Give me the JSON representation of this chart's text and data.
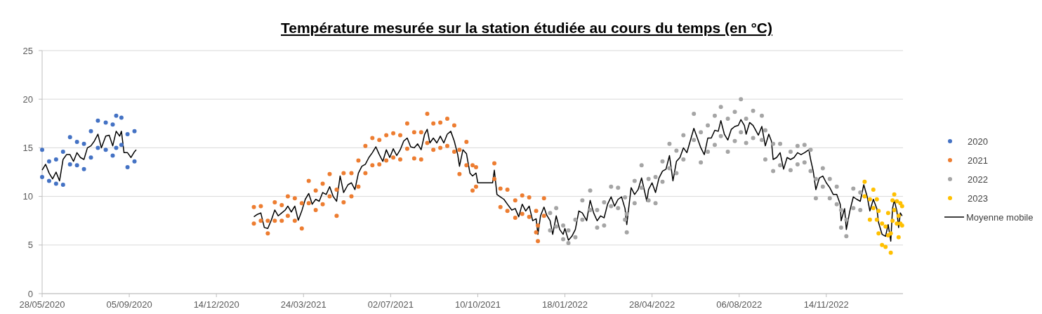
{
  "chart_data": {
    "type": "scatter",
    "title": "Température mesurée sur la station étudiée au cours du temps (en °C)",
    "xlim": [
      "2020-05-28",
      "2023-02-10"
    ],
    "ylim": [
      0,
      25
    ],
    "yticks": [
      0,
      5,
      10,
      15,
      20,
      25
    ],
    "xticks": [
      {
        "value": "2020-05-28",
        "label": "28/05/2020"
      },
      {
        "value": "2020-09-05",
        "label": "05/09/2020"
      },
      {
        "value": "2020-12-14",
        "label": "14/12/2020"
      },
      {
        "value": "2021-03-24",
        "label": "24/03/2021"
      },
      {
        "value": "2021-07-02",
        "label": "02/07/2021"
      },
      {
        "value": "2021-10-10",
        "label": "10/10/2021"
      },
      {
        "value": "2022-01-18",
        "label": "18/01/2022"
      },
      {
        "value": "2022-04-28",
        "label": "28/04/2022"
      },
      {
        "value": "2022-08-06",
        "label": "06/08/2022"
      },
      {
        "value": "2022-11-14",
        "label": "14/11/2022"
      }
    ],
    "grid": "y",
    "legend": "right",
    "marker": "circle",
    "series": [
      {
        "name": "2020",
        "color": "#4472c4",
        "x": [
          "2020-05-28",
          "2020-05-28",
          "2020-06-05",
          "2020-06-05",
          "2020-06-13",
          "2020-06-13",
          "2020-06-21",
          "2020-06-21",
          "2020-06-29",
          "2020-06-29",
          "2020-07-07",
          "2020-07-07",
          "2020-07-15",
          "2020-07-15",
          "2020-07-23",
          "2020-07-23",
          "2020-07-31",
          "2020-07-31",
          "2020-08-09",
          "2020-08-09",
          "2020-08-17",
          "2020-08-17",
          "2020-08-21",
          "2020-08-21",
          "2020-08-27",
          "2020-08-27",
          "2020-09-03",
          "2020-09-03",
          "2020-09-11",
          "2020-09-11"
        ],
        "values": [
          14.8,
          12.0,
          13.6,
          11.6,
          13.8,
          11.3,
          14.6,
          11.2,
          16.1,
          13.3,
          15.6,
          13.2,
          15.4,
          12.8,
          16.7,
          14.0,
          17.8,
          15.0,
          17.6,
          14.8,
          17.4,
          14.2,
          18.3,
          15.0,
          18.1,
          15.3,
          16.4,
          13.0,
          16.7,
          13.6
        ]
      },
      {
        "name": "2021",
        "color": "#ed7d31",
        "x": [
          "2021-01-26",
          "2021-01-26",
          "2021-02-03",
          "2021-02-03",
          "2021-02-11",
          "2021-02-11",
          "2021-02-19",
          "2021-02-19",
          "2021-02-27",
          "2021-02-27",
          "2021-03-06",
          "2021-03-06",
          "2021-03-14",
          "2021-03-14",
          "2021-03-22",
          "2021-03-22",
          "2021-03-30",
          "2021-03-30",
          "2021-04-07",
          "2021-04-07",
          "2021-04-15",
          "2021-04-15",
          "2021-04-23",
          "2021-04-23",
          "2021-05-01",
          "2021-05-01",
          "2021-05-09",
          "2021-05-09",
          "2021-05-18",
          "2021-05-18",
          "2021-05-26",
          "2021-05-26",
          "2021-06-03",
          "2021-06-03",
          "2021-06-11",
          "2021-06-11",
          "2021-06-19",
          "2021-06-19",
          "2021-06-27",
          "2021-06-27",
          "2021-07-05",
          "2021-07-05",
          "2021-07-13",
          "2021-07-13",
          "2021-07-21",
          "2021-07-21",
          "2021-07-29",
          "2021-07-29",
          "2021-08-06",
          "2021-08-06",
          "2021-08-13",
          "2021-08-13",
          "2021-08-20",
          "2021-08-20",
          "2021-08-28",
          "2021-08-28",
          "2021-09-05",
          "2021-09-05",
          "2021-09-13",
          "2021-09-13",
          "2021-09-19",
          "2021-09-19",
          "2021-09-27",
          "2021-09-27",
          "2021-10-04",
          "2021-10-04",
          "2021-10-08",
          "2021-10-08",
          "2021-10-29",
          "2021-10-29",
          "2021-11-05",
          "2021-11-05",
          "2021-11-13",
          "2021-11-13",
          "2021-11-22",
          "2021-11-22",
          "2021-11-30",
          "2021-11-30",
          "2021-12-08",
          "2021-12-08",
          "2021-12-16",
          "2021-12-16",
          "2021-12-18",
          "2021-12-18",
          "2021-12-25",
          "2021-12-25"
        ],
        "values": [
          8.9,
          7.2,
          9.0,
          7.5,
          7.5,
          6.2,
          9.4,
          7.5,
          9.1,
          7.5,
          10.0,
          8.0,
          9.8,
          7.5,
          9.3,
          6.7,
          11.6,
          9.3,
          10.6,
          8.6,
          11.3,
          9.2,
          12.3,
          10.0,
          10.7,
          8.0,
          12.4,
          9.4,
          12.4,
          10.0,
          13.7,
          11.0,
          15.2,
          12.4,
          16.0,
          13.2,
          15.8,
          13.3,
          16.3,
          13.7,
          16.5,
          14.0,
          16.3,
          13.8,
          17.5,
          14.9,
          16.6,
          13.9,
          16.6,
          13.8,
          18.5,
          15.5,
          17.5,
          14.8,
          17.6,
          15.0,
          18.0,
          15.2,
          17.3,
          14.6,
          14.8,
          12.3,
          15.6,
          13.2,
          13.2,
          10.6,
          13.0,
          11.0,
          13.4,
          11.8,
          10.8,
          8.9,
          10.7,
          8.5,
          9.6,
          7.8,
          10.1,
          8.2,
          9.9,
          7.9,
          8.5,
          6.3,
          7.0,
          5.4,
          9.8,
          8.0
        ]
      },
      {
        "name": "2022",
        "color": "#a5a5a5",
        "x": [
          "2022-01-01",
          "2022-01-01",
          "2022-01-08",
          "2022-01-08",
          "2022-01-16",
          "2022-01-16",
          "2022-01-22",
          "2022-01-22",
          "2022-01-30",
          "2022-01-30",
          "2022-02-07",
          "2022-02-07",
          "2022-02-16",
          "2022-02-16",
          "2022-02-24",
          "2022-02-24",
          "2022-03-04",
          "2022-03-04",
          "2022-03-12",
          "2022-03-12",
          "2022-03-20",
          "2022-03-20",
          "2022-03-28",
          "2022-03-28",
          "2022-03-30",
          "2022-03-30",
          "2022-04-08",
          "2022-04-08",
          "2022-04-16",
          "2022-04-16",
          "2022-04-24",
          "2022-04-24",
          "2022-05-02",
          "2022-05-02",
          "2022-05-10",
          "2022-05-10",
          "2022-05-18",
          "2022-05-18",
          "2022-05-26",
          "2022-05-26",
          "2022-06-03",
          "2022-06-03",
          "2022-06-15",
          "2022-06-15",
          "2022-06-23",
          "2022-06-23",
          "2022-07-01",
          "2022-07-01",
          "2022-07-09",
          "2022-07-09",
          "2022-07-16",
          "2022-07-16",
          "2022-07-24",
          "2022-07-24",
          "2022-08-01",
          "2022-08-01",
          "2022-08-08",
          "2022-08-08",
          "2022-08-14",
          "2022-08-14",
          "2022-08-22",
          "2022-08-22",
          "2022-09-01",
          "2022-09-01",
          "2022-09-05",
          "2022-09-05",
          "2022-09-14",
          "2022-09-14",
          "2022-09-22",
          "2022-09-22",
          "2022-10-04",
          "2022-10-04",
          "2022-10-12",
          "2022-10-12",
          "2022-10-20",
          "2022-10-20",
          "2022-10-27",
          "2022-10-27",
          "2022-11-02",
          "2022-11-02",
          "2022-11-10",
          "2022-11-10",
          "2022-11-18",
          "2022-11-18",
          "2022-11-26",
          "2022-11-26",
          "2022-12-01",
          "2022-12-01",
          "2022-12-07",
          "2022-12-07",
          "2022-12-15",
          "2022-12-15",
          "2022-12-23",
          "2022-12-23"
        ],
        "values": [
          8.3,
          6.5,
          8.8,
          6.9,
          7.0,
          5.6,
          6.5,
          5.2,
          7.6,
          5.8,
          9.6,
          7.6,
          10.6,
          8.6,
          8.6,
          6.8,
          9.4,
          7.0,
          11.0,
          9.0,
          10.9,
          8.8,
          9.9,
          7.6,
          8.2,
          6.3,
          11.6,
          9.3,
          13.2,
          10.9,
          11.8,
          9.6,
          12.0,
          9.3,
          13.6,
          11.5,
          15.4,
          12.9,
          14.7,
          12.4,
          16.3,
          13.8,
          18.5,
          15.8,
          16.6,
          13.5,
          17.3,
          14.6,
          18.3,
          15.3,
          19.2,
          16.2,
          18.0,
          14.6,
          18.7,
          15.7,
          20.0,
          16.6,
          18.0,
          15.5,
          18.8,
          16.0,
          18.3,
          15.8,
          16.8,
          13.8,
          15.4,
          12.6,
          15.4,
          13.2,
          14.6,
          12.7,
          15.2,
          13.3,
          15.3,
          13.5,
          14.8,
          12.6,
          11.8,
          9.8,
          12.9,
          11.0,
          11.8,
          9.8,
          11.0,
          9.2,
          8.6,
          6.8,
          7.6,
          5.9,
          10.8,
          8.8,
          10.4,
          8.6
        ]
      },
      {
        "name": "2023",
        "color": "#ffc000",
        "x": [
          "2022-12-28",
          "2022-12-28",
          "2023-01-03",
          "2023-01-03",
          "2023-01-07",
          "2023-01-07",
          "2023-01-11",
          "2023-01-11",
          "2023-01-13",
          "2023-01-13",
          "2023-01-17",
          "2023-01-17",
          "2023-01-21",
          "2023-01-21",
          "2023-01-24",
          "2023-01-24",
          "2023-01-27",
          "2023-01-27",
          "2023-01-29",
          "2023-01-29",
          "2023-01-31",
          "2023-01-31",
          "2023-02-03",
          "2023-02-03",
          "2023-02-05",
          "2023-02-05",
          "2023-02-07",
          "2023-02-07",
          "2023-02-09",
          "2023-02-09"
        ],
        "values": [
          11.5,
          10.0,
          9.7,
          7.6,
          10.7,
          8.8,
          9.7,
          7.6,
          8.5,
          6.2,
          7.2,
          5.0,
          6.9,
          4.8,
          8.3,
          6.0,
          6.2,
          4.2,
          9.6,
          7.5,
          10.2,
          8.6,
          9.5,
          7.2,
          8.0,
          5.8,
          9.3,
          7.2,
          9.0,
          7.0
        ]
      },
      {
        "name": "Moyenne mobile",
        "color": "#000000",
        "type": "line",
        "marker": "none",
        "x": [
          "2020-05-28",
          "2020-06-01",
          "2020-06-05",
          "2020-06-09",
          "2020-06-13",
          "2020-06-17",
          "2020-06-21",
          "2020-06-25",
          "2020-06-29",
          "2020-07-03",
          "2020-07-07",
          "2020-07-11",
          "2020-07-15",
          "2020-07-19",
          "2020-07-23",
          "2020-07-27",
          "2020-07-31",
          "2020-08-04",
          "2020-08-09",
          "2020-08-13",
          "2020-08-17",
          "2020-08-21",
          "2020-08-25",
          "2020-08-27",
          "2020-08-30",
          "2020-09-03",
          "2020-09-07",
          "2020-09-11",
          "2020-09-13",
          "2020-11-01",
          "2021-01-26",
          "2021-01-30",
          "2021-02-03",
          "2021-02-07",
          "2021-02-11",
          "2021-02-15",
          "2021-02-19",
          "2021-02-23",
          "2021-02-27",
          "2021-03-03",
          "2021-03-06",
          "2021-03-10",
          "2021-03-14",
          "2021-03-18",
          "2021-03-22",
          "2021-03-26",
          "2021-03-30",
          "2021-04-03",
          "2021-04-07",
          "2021-04-11",
          "2021-04-15",
          "2021-04-19",
          "2021-04-23",
          "2021-04-27",
          "2021-05-01",
          "2021-05-05",
          "2021-05-09",
          "2021-05-14",
          "2021-05-18",
          "2021-05-22",
          "2021-05-26",
          "2021-05-30",
          "2021-06-03",
          "2021-06-07",
          "2021-06-11",
          "2021-06-15",
          "2021-06-19",
          "2021-06-23",
          "2021-06-27",
          "2021-07-01",
          "2021-07-05",
          "2021-07-09",
          "2021-07-13",
          "2021-07-17",
          "2021-07-21",
          "2021-07-25",
          "2021-07-29",
          "2021-08-02",
          "2021-08-06",
          "2021-08-10",
          "2021-08-13",
          "2021-08-16",
          "2021-08-20",
          "2021-08-24",
          "2021-08-28",
          "2021-09-01",
          "2021-09-05",
          "2021-09-09",
          "2021-09-13",
          "2021-09-17",
          "2021-09-19",
          "2021-09-23",
          "2021-09-27",
          "2021-10-01",
          "2021-10-04",
          "2021-10-08",
          "2021-10-10",
          "2021-10-27",
          "2021-10-29",
          "2021-11-01",
          "2021-11-05",
          "2021-11-09",
          "2021-11-13",
          "2021-11-18",
          "2021-11-22",
          "2021-11-26",
          "2021-11-30",
          "2021-12-04",
          "2021-12-08",
          "2021-12-12",
          "2021-12-16",
          "2021-12-18",
          "2021-12-21",
          "2021-12-25",
          "2021-12-28",
          "2022-01-01",
          "2022-01-04",
          "2022-01-08",
          "2022-01-12",
          "2022-01-16",
          "2022-01-18",
          "2022-01-22",
          "2022-01-26",
          "2022-01-30",
          "2022-02-03",
          "2022-02-07",
          "2022-02-12",
          "2022-02-16",
          "2022-02-20",
          "2022-02-24",
          "2022-02-28",
          "2022-03-04",
          "2022-03-08",
          "2022-03-12",
          "2022-03-16",
          "2022-03-20",
          "2022-03-24",
          "2022-03-28",
          "2022-03-30",
          "2022-04-04",
          "2022-04-08",
          "2022-04-12",
          "2022-04-16",
          "2022-04-22",
          "2022-04-24",
          "2022-04-28",
          "2022-05-02",
          "2022-05-06",
          "2022-05-10",
          "2022-05-14",
          "2022-05-18",
          "2022-05-22",
          "2022-05-26",
          "2022-05-30",
          "2022-06-03",
          "2022-06-07",
          "2022-06-15",
          "2022-06-19",
          "2022-06-23",
          "2022-06-27",
          "2022-07-01",
          "2022-07-05",
          "2022-07-09",
          "2022-07-13",
          "2022-07-16",
          "2022-07-20",
          "2022-07-24",
          "2022-07-28",
          "2022-08-01",
          "2022-08-05",
          "2022-08-08",
          "2022-08-12",
          "2022-08-14",
          "2022-08-18",
          "2022-08-22",
          "2022-08-28",
          "2022-09-01",
          "2022-09-05",
          "2022-09-09",
          "2022-09-12",
          "2022-09-14",
          "2022-09-18",
          "2022-09-22",
          "2022-09-26",
          "2022-09-30",
          "2022-10-04",
          "2022-10-08",
          "2022-10-12",
          "2022-10-16",
          "2022-10-20",
          "2022-10-25",
          "2022-10-27",
          "2022-10-30",
          "2022-11-02",
          "2022-11-06",
          "2022-11-10",
          "2022-11-14",
          "2022-11-18",
          "2022-11-22",
          "2022-11-26",
          "2022-11-30",
          "2022-12-01",
          "2022-12-05",
          "2022-12-07",
          "2022-12-11",
          "2022-12-15",
          "2022-12-19",
          "2022-12-23",
          "2022-12-27",
          "2022-12-31",
          "2023-01-03",
          "2023-01-07",
          "2023-01-11",
          "2023-01-13",
          "2023-01-17",
          "2023-01-21",
          "2023-01-24",
          "2023-01-27",
          "2023-01-29",
          "2023-01-31",
          "2023-02-03",
          "2023-02-05",
          "2023-02-07",
          "2023-02-09"
        ],
        "values": [
          12.7,
          13.3,
          12.4,
          11.8,
          12.5,
          11.6,
          13.8,
          14.3,
          14.3,
          13.6,
          14.5,
          14.0,
          13.8,
          15.0,
          15.2,
          15.7,
          16.4,
          15.0,
          16.2,
          16.3,
          15.2,
          16.7,
          16.2,
          16.7,
          14.5,
          14.5,
          14.0,
          14.6,
          14.8,
          null,
          7.9,
          8.15,
          8.3,
          6.8,
          6.7,
          7.55,
          8.6,
          8.0,
          8.3,
          8.6,
          9.0,
          8.4,
          9.0,
          7.55,
          8.5,
          9.7,
          10.3,
          9.2,
          9.7,
          9.5,
          10.4,
          10.2,
          11.0,
          10.0,
          9.5,
          12.1,
          10.4,
          11.2,
          11.4,
          10.7,
          12.4,
          13.1,
          13.3,
          14.0,
          14.5,
          15.1,
          14.3,
          13.6,
          14.8,
          14.0,
          14.9,
          14.2,
          14.8,
          15.7,
          16.0,
          15.1,
          15.0,
          15.4,
          14.8,
          16.4,
          16.9,
          15.5,
          16.0,
          15.5,
          16.2,
          15.5,
          16.4,
          16.7,
          15.7,
          14.3,
          13.1,
          14.8,
          14.4,
          12.4,
          12.1,
          12.4,
          11.4,
          11.4,
          12.7,
          10.2,
          9.95,
          9.7,
          9.2,
          8.6,
          8.75,
          7.9,
          9.2,
          8.5,
          9.0,
          7.5,
          7.7,
          6.1,
          8.0,
          8.9,
          8.1,
          7.5,
          6.1,
          8.0,
          6.6,
          6.1,
          6.7,
          5.5,
          5.9,
          6.6,
          8.5,
          8.3,
          7.5,
          9.6,
          8.3,
          7.5,
          8.0,
          7.8,
          9.2,
          9.95,
          9.0,
          9.7,
          9.95,
          8.75,
          7.1,
          10.9,
          10.2,
          10.7,
          11.9,
          9.5,
          10.7,
          11.4,
          10.4,
          11.9,
          12.6,
          12.8,
          14.2,
          11.6,
          13.6,
          14.0,
          15.0,
          14.5,
          17.0,
          16.0,
          15.0,
          14.3,
          16.0,
          16.0,
          16.8,
          16.7,
          17.8,
          16.4,
          15.8,
          16.9,
          17.2,
          17.3,
          17.9,
          17.3,
          16.4,
          17.6,
          17.3,
          16.3,
          17.2,
          15.2,
          16.4,
          15.7,
          13.8,
          14.0,
          14.5,
          12.8,
          14.0,
          13.8,
          14.0,
          14.5,
          14.3,
          14.5,
          14.8,
          13.8,
          12.6,
          10.7,
          11.9,
          12.1,
          11.4,
          10.9,
          10.2,
          10.2,
          9.2,
          7.5,
          8.75,
          6.6,
          8.5,
          9.95,
          9.7,
          9.5,
          11.2,
          9.95,
          8.5,
          9.7,
          8.75,
          7.3,
          6.1,
          5.9,
          7.1,
          5.4,
          8.75,
          9.6,
          8.5,
          6.8,
          8.3,
          8.0
        ]
      }
    ]
  }
}
